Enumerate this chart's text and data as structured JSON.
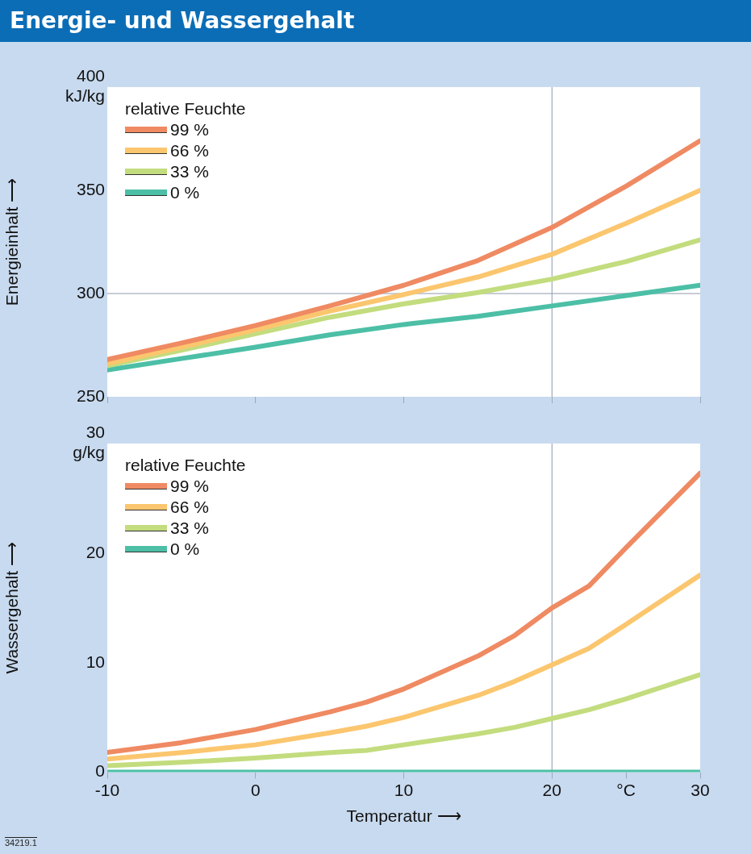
{
  "chart_data": [
    {
      "type": "line",
      "title": "Energie- und Wassergehalt",
      "ylabel": "Energieinhalt ⟶",
      "legend_title": "relative Feuchte",
      "legend": "top left",
      "grid": false,
      "tick_labels": "y",
      "x": [
        -10,
        -5,
        0,
        5,
        10,
        15,
        20,
        25,
        30
      ],
      "xlim": [
        -10,
        30
      ],
      "xticks": [
        {
          "value": -10,
          "label": null
        },
        {
          "value": 0,
          "label": null
        },
        {
          "value": 10,
          "label": null
        },
        {
          "value": 20,
          "label": null
        },
        {
          "value": 30,
          "label": null
        }
      ],
      "ylim": [
        250,
        400
      ],
      "yticks": [
        250,
        300,
        350,
        {
          "value": 400,
          "label": "400 kJ/kg"
        }
      ],
      "ref_lines": [
        {
          "axis": "x",
          "value": 20,
          "color": "#8c9aab"
        },
        {
          "axis": "y",
          "value": 300,
          "color": "#8c9aab"
        }
      ],
      "series": [
        {
          "name": "99 %",
          "color": "#ef8a62",
          "values": [
            268,
            276,
            284.5,
            294,
            304,
            316,
            332,
            352,
            374
          ]
        },
        {
          "name": "66 %",
          "color": "#fbc66e",
          "values": [
            266,
            274,
            282.5,
            291.5,
            299.5,
            308,
            319,
            334,
            350
          ]
        },
        {
          "name": "33 %",
          "color": "#c3dc7e",
          "values": [
            265,
            272.5,
            280.5,
            288.5,
            295,
            300.5,
            307,
            315.5,
            326
          ]
        },
        {
          "name": "0 %",
          "color": "#4cbfa6",
          "values": [
            263,
            268.5,
            274,
            280,
            285,
            289,
            294,
            299,
            304
          ]
        }
      ]
    },
    {
      "type": "line",
      "xlabel": "Temperatur ⟶",
      "ylabel": "Wassergehalt ⟶",
      "legend_title": "relative Feuchte",
      "legend": "top left",
      "grid": false,
      "annotations": [
        "34219.1"
      ],
      "x": [
        -10,
        -5,
        0,
        5,
        7.5,
        10,
        15,
        17.5,
        20,
        22.5,
        25,
        30
      ],
      "xlim": [
        -10,
        30
      ],
      "xticks": [
        -10,
        0,
        10,
        20,
        {
          "value": 25,
          "label": "°C"
        },
        30
      ],
      "ylim": [
        0,
        30
      ],
      "yticks": [
        0,
        10,
        20,
        {
          "value": 30,
          "label": "30 g/kg"
        }
      ],
      "ref_lines": [
        {
          "axis": "x",
          "value": 20,
          "color": "#8c9aab"
        }
      ],
      "series": [
        {
          "name": "99 %",
          "color": "#ef8a62",
          "values": [
            1.8,
            2.7,
            3.9,
            5.5,
            6.4,
            7.6,
            10.6,
            12.5,
            15,
            17,
            20.5,
            27.3
          ]
        },
        {
          "name": "66 %",
          "color": "#fbc66e",
          "values": [
            1.2,
            1.8,
            2.5,
            3.6,
            4.2,
            5.0,
            7.0,
            8.3,
            9.8,
            11.3,
            13.5,
            18
          ]
        },
        {
          "name": "33 %",
          "color": "#c3dc7e",
          "values": [
            0.6,
            0.9,
            1.3,
            1.8,
            2.0,
            2.5,
            3.5,
            4.1,
            4.9,
            5.7,
            6.7,
            8.9
          ]
        },
        {
          "name": "0 %",
          "color": "#4cbfa6",
          "values": [
            0,
            0,
            0,
            0,
            0,
            0,
            0,
            0,
            0,
            0,
            0,
            0
          ]
        }
      ]
    }
  ]
}
